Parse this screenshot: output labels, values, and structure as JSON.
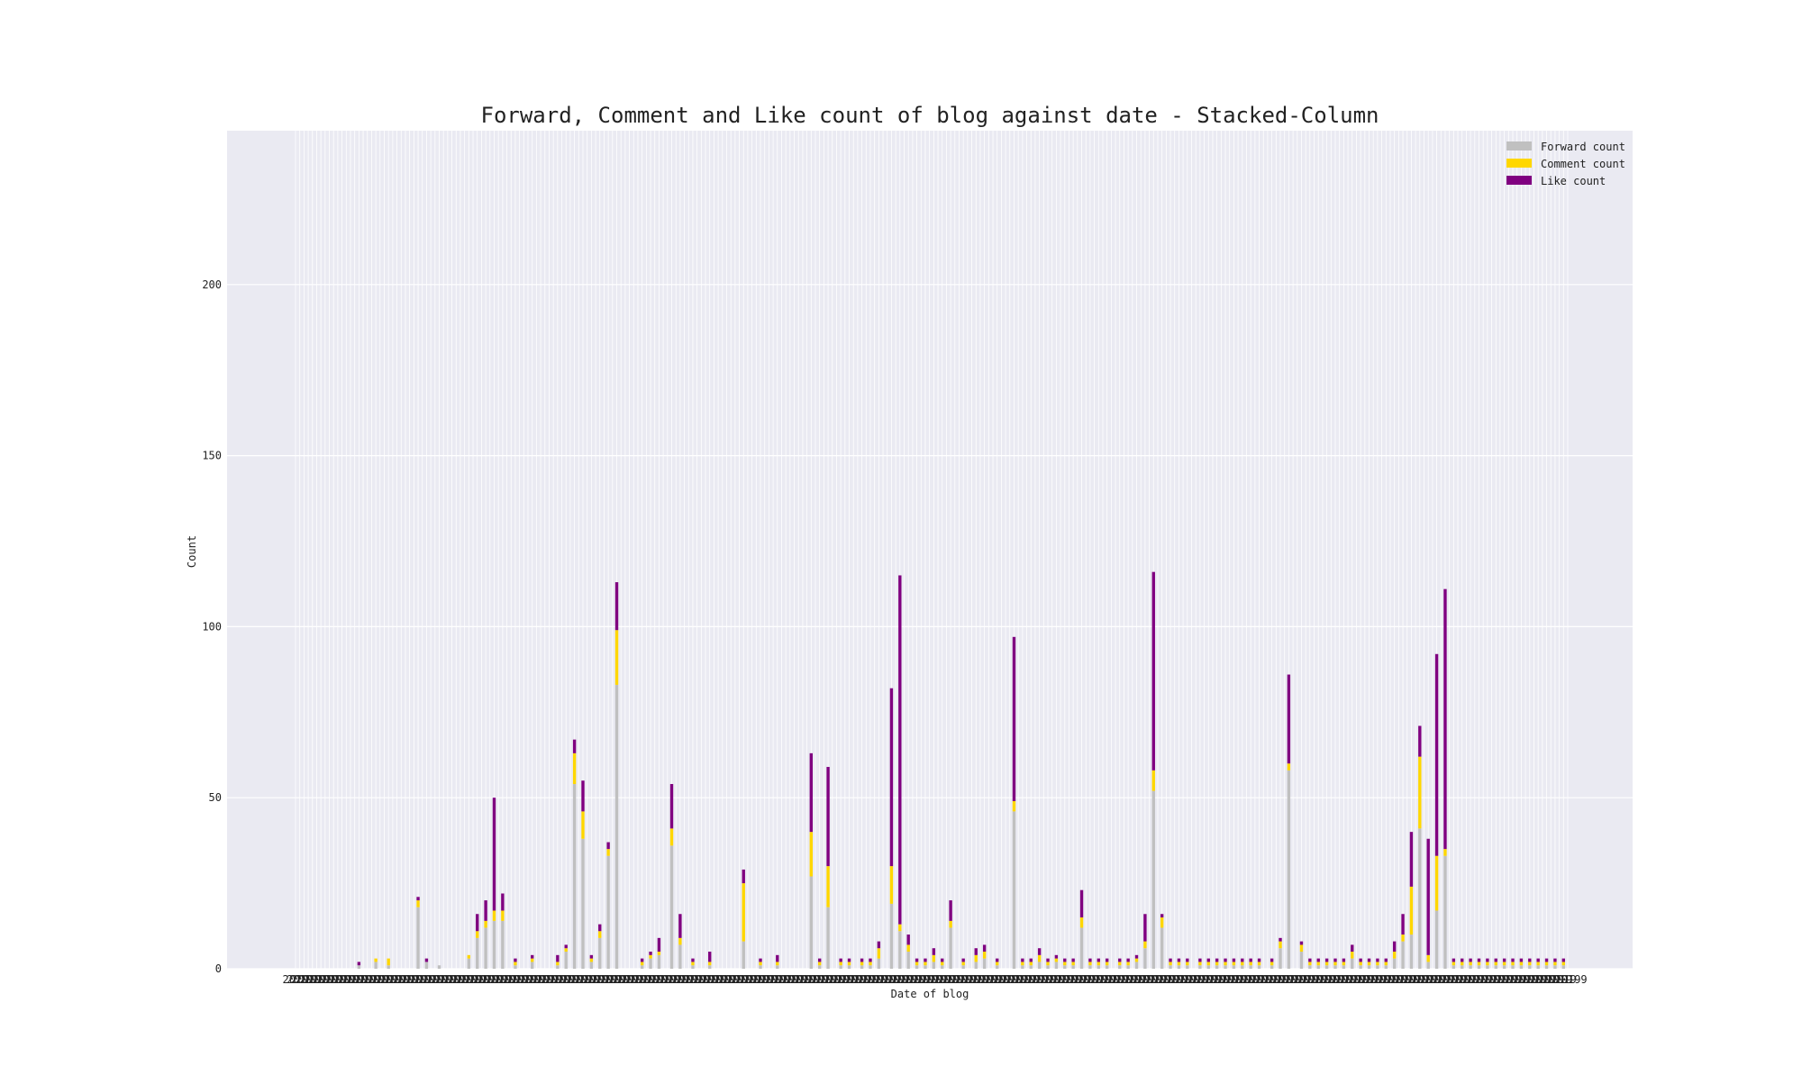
{
  "chart_data": {
    "type": "bar",
    "stacked": true,
    "title": "Forward, Comment and Like count of blog against date - Stacked-Column",
    "xlabel": "Date of blog",
    "ylabel": "Count",
    "ylim": [
      0,
      245
    ],
    "yticks": [
      0,
      50,
      100,
      150,
      200
    ],
    "grid": true,
    "legend_position": "top-right",
    "category_count": 302,
    "x_tick_label_prefix": "2019",
    "x_tick_label_suffix": "9",
    "colors": {
      "plot_background": "#eaeaf2",
      "grid": "#ffffff",
      "forward": "#c0c0c0",
      "comment": "#ffd700",
      "like": "#800080"
    },
    "series": [
      {
        "name": "Forward count",
        "values": [
          0,
          0,
          0,
          0,
          0,
          0,
          0,
          0,
          0,
          0,
          0,
          0,
          0,
          0,
          0,
          1,
          0,
          0,
          0,
          2,
          0,
          0,
          1,
          0,
          0,
          0,
          0,
          0,
          0,
          18,
          0,
          2,
          0,
          0,
          1,
          0,
          0,
          0,
          0,
          0,
          0,
          3,
          0,
          9,
          0,
          12,
          0,
          14,
          0,
          14,
          0,
          0,
          1,
          0,
          0,
          0,
          2,
          0,
          0,
          0,
          0,
          0,
          1,
          0,
          5,
          0,
          54,
          0,
          38,
          0,
          2,
          0,
          9,
          0,
          33,
          0,
          83,
          0,
          0,
          0,
          0,
          0,
          1,
          0,
          3,
          0,
          4,
          0,
          0,
          36,
          0,
          7,
          0,
          0,
          1,
          0,
          0,
          0,
          1,
          0,
          0,
          0,
          0,
          0,
          0,
          0,
          8,
          0,
          0,
          0,
          1,
          0,
          0,
          0,
          1,
          0,
          0,
          0,
          0,
          0,
          0,
          0,
          27,
          0,
          1,
          0,
          18,
          0,
          0,
          1,
          0,
          1,
          0,
          0,
          1,
          0,
          1,
          0,
          3,
          0,
          0,
          19,
          0,
          11,
          0,
          5,
          0,
          1,
          0,
          1,
          0,
          2,
          0,
          1,
          0,
          12,
          0,
          0,
          1,
          0,
          0,
          2,
          0,
          3,
          0,
          0,
          1,
          0,
          0,
          0,
          46,
          0,
          1,
          0,
          1,
          0,
          2,
          0,
          1,
          0,
          2,
          0,
          1,
          0,
          1,
          0,
          12,
          0,
          1,
          0,
          1,
          0,
          1,
          0,
          0,
          1,
          0,
          1,
          0,
          2,
          0,
          6,
          0,
          52,
          0,
          12,
          0,
          1,
          0,
          1,
          0,
          1,
          0,
          0,
          1,
          0,
          1,
          0,
          1,
          0,
          1,
          0,
          1,
          0,
          1,
          0,
          1,
          0,
          1,
          0,
          0,
          1,
          0,
          6,
          0,
          58,
          0,
          0,
          5,
          0,
          1,
          0,
          1,
          0,
          1,
          0,
          1,
          0,
          1,
          0,
          3,
          0,
          1,
          0,
          1,
          0,
          1,
          0,
          1,
          0,
          3,
          0,
          8,
          0,
          10,
          0,
          41,
          0,
          2,
          0,
          17,
          0,
          33,
          0,
          1,
          0,
          1,
          0,
          1,
          0,
          1,
          0,
          1,
          0,
          1,
          0,
          1,
          0,
          1,
          0,
          1,
          0,
          1,
          0,
          1,
          0,
          1,
          0,
          1,
          0,
          1,
          0,
          1
        ]
      },
      {
        "name": "Comment count",
        "values": [
          0,
          0,
          0,
          0,
          0,
          0,
          0,
          0,
          0,
          0,
          0,
          0,
          0,
          0,
          0,
          0,
          0,
          0,
          0,
          1,
          0,
          0,
          2,
          0,
          0,
          0,
          0,
          0,
          0,
          2,
          0,
          0,
          0,
          0,
          0,
          0,
          0,
          0,
          0,
          0,
          0,
          1,
          0,
          2,
          0,
          2,
          0,
          3,
          0,
          3,
          0,
          0,
          1,
          0,
          0,
          0,
          1,
          0,
          0,
          0,
          0,
          0,
          1,
          0,
          1,
          0,
          9,
          0,
          8,
          0,
          1,
          0,
          2,
          0,
          2,
          0,
          16,
          0,
          0,
          0,
          0,
          0,
          1,
          0,
          1,
          0,
          1,
          0,
          0,
          5,
          0,
          2,
          0,
          0,
          1,
          0,
          0,
          0,
          1,
          0,
          0,
          0,
          0,
          0,
          0,
          0,
          17,
          0,
          0,
          0,
          1,
          0,
          0,
          0,
          1,
          0,
          0,
          0,
          0,
          0,
          0,
          0,
          13,
          0,
          1,
          0,
          12,
          0,
          0,
          1,
          0,
          1,
          0,
          0,
          1,
          0,
          1,
          0,
          3,
          0,
          0,
          11,
          0,
          2,
          0,
          2,
          0,
          1,
          0,
          1,
          0,
          2,
          0,
          1,
          0,
          2,
          0,
          0,
          1,
          0,
          0,
          2,
          0,
          2,
          0,
          0,
          1,
          0,
          0,
          0,
          3,
          0,
          1,
          0,
          1,
          0,
          2,
          0,
          1,
          0,
          1,
          0,
          1,
          0,
          1,
          0,
          3,
          0,
          1,
          0,
          1,
          0,
          1,
          0,
          0,
          1,
          0,
          1,
          0,
          1,
          0,
          2,
          0,
          6,
          0,
          3,
          0,
          1,
          0,
          1,
          0,
          1,
          0,
          0,
          1,
          0,
          1,
          0,
          1,
          0,
          1,
          0,
          1,
          0,
          1,
          0,
          1,
          0,
          1,
          0,
          0,
          1,
          0,
          2,
          0,
          2,
          0,
          0,
          2,
          0,
          1,
          0,
          1,
          0,
          1,
          0,
          1,
          0,
          1,
          0,
          2,
          0,
          1,
          0,
          1,
          0,
          1,
          0,
          1,
          0,
          2,
          0,
          2,
          0,
          14,
          0,
          21,
          0,
          2,
          0,
          16,
          0,
          2,
          0,
          1,
          0,
          1,
          0,
          1,
          0,
          1,
          0,
          1,
          0,
          1,
          0,
          1,
          0,
          1,
          0,
          1,
          0,
          1,
          0,
          1,
          0,
          1,
          0,
          1,
          0,
          1,
          0,
          1
        ]
      },
      {
        "name": "Like count",
        "values": [
          0,
          0,
          0,
          0,
          0,
          0,
          0,
          0,
          0,
          0,
          0,
          0,
          0,
          0,
          0,
          1,
          0,
          0,
          0,
          0,
          0,
          0,
          0,
          0,
          0,
          0,
          0,
          0,
          0,
          1,
          0,
          1,
          0,
          0,
          0,
          0,
          0,
          0,
          0,
          0,
          0,
          0,
          0,
          5,
          0,
          6,
          0,
          33,
          0,
          5,
          0,
          0,
          1,
          0,
          0,
          0,
          1,
          0,
          0,
          0,
          0,
          0,
          2,
          0,
          1,
          0,
          4,
          0,
          9,
          0,
          1,
          0,
          2,
          0,
          2,
          0,
          14,
          0,
          0,
          0,
          0,
          0,
          1,
          0,
          1,
          0,
          4,
          0,
          0,
          13,
          0,
          7,
          0,
          0,
          1,
          0,
          0,
          0,
          3,
          0,
          0,
          0,
          0,
          0,
          0,
          0,
          4,
          0,
          0,
          0,
          1,
          0,
          0,
          0,
          2,
          0,
          0,
          0,
          0,
          0,
          0,
          0,
          23,
          0,
          1,
          0,
          29,
          0,
          0,
          1,
          0,
          1,
          0,
          0,
          1,
          0,
          1,
          0,
          2,
          0,
          0,
          52,
          0,
          102,
          0,
          3,
          0,
          1,
          0,
          1,
          0,
          2,
          0,
          1,
          0,
          6,
          0,
          0,
          1,
          0,
          0,
          2,
          0,
          2,
          0,
          0,
          1,
          0,
          0,
          0,
          48,
          0,
          1,
          0,
          1,
          0,
          2,
          0,
          1,
          0,
          1,
          0,
          1,
          0,
          1,
          0,
          8,
          0,
          1,
          0,
          1,
          0,
          1,
          0,
          0,
          1,
          0,
          1,
          0,
          1,
          0,
          8,
          0,
          58,
          0,
          1,
          0,
          1,
          0,
          1,
          0,
          1,
          0,
          0,
          1,
          0,
          1,
          0,
          1,
          0,
          1,
          0,
          1,
          0,
          1,
          0,
          1,
          0,
          1,
          0,
          0,
          1,
          0,
          1,
          0,
          26,
          0,
          0,
          1,
          0,
          1,
          0,
          1,
          0,
          1,
          0,
          1,
          0,
          1,
          0,
          2,
          0,
          1,
          0,
          1,
          0,
          1,
          0,
          1,
          0,
          3,
          0,
          6,
          0,
          16,
          0,
          9,
          0,
          34,
          0,
          59,
          0,
          76,
          0,
          1,
          0,
          1,
          0,
          1,
          0,
          1,
          0,
          1,
          0,
          1,
          0,
          1,
          0,
          1,
          0,
          1,
          0,
          1,
          0,
          1,
          0,
          1,
          0,
          1,
          0,
          1,
          0,
          1
        ]
      }
    ]
  }
}
